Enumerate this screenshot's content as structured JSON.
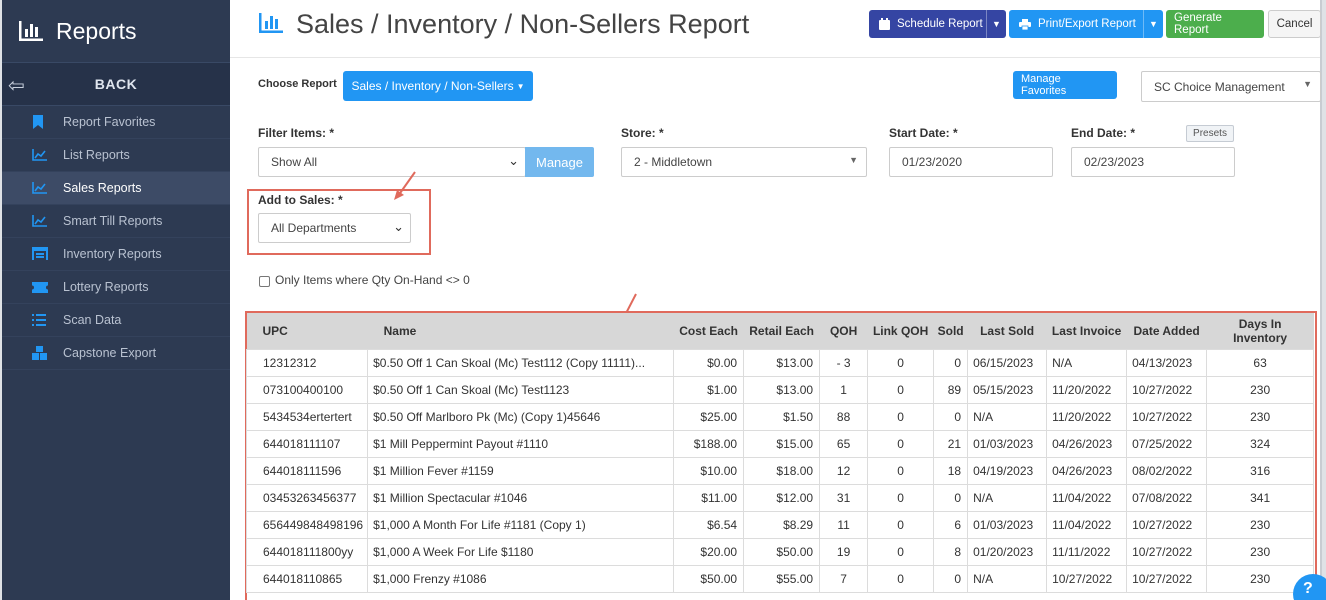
{
  "sidebar": {
    "title": "Reports",
    "back_label": "BACK",
    "items": [
      {
        "label": "Report Favorites",
        "icon": "bookmark-icon",
        "active": false
      },
      {
        "label": "List Reports",
        "icon": "chart-line-icon",
        "active": false
      },
      {
        "label": "Sales Reports",
        "icon": "chart-line-icon",
        "active": true
      },
      {
        "label": "Smart Till Reports",
        "icon": "chart-line-icon",
        "active": false
      },
      {
        "label": "Inventory Reports",
        "icon": "warehouse-icon",
        "active": false
      },
      {
        "label": "Lottery Reports",
        "icon": "ticket-icon",
        "active": false
      },
      {
        "label": "Scan Data",
        "icon": "list-icon",
        "active": false
      },
      {
        "label": "Capstone Export",
        "icon": "cubes-icon",
        "active": false
      }
    ]
  },
  "header": {
    "title": "Sales / Inventory / Non-Sellers Report",
    "schedule_label": "Schedule Report",
    "print_label": "Print/Export Report",
    "generate_label": "Generate Report",
    "cancel_label": "Cancel"
  },
  "choose": {
    "label": "Choose Report",
    "value": "Sales / Inventory / Non-Sellers",
    "favorites_label": "Manage Favorites",
    "org_value": "SC Choice Management"
  },
  "filters": {
    "filter_label": "Filter Items: *",
    "filter_value": "Show All",
    "manage_label": "Manage",
    "store_label": "Store: *",
    "store_value": "2 - Middletown",
    "start_label": "Start Date: *",
    "start_value": "01/23/2020",
    "end_label": "End Date: *",
    "end_value": "02/23/2023",
    "presets_label": "Presets",
    "add_label": "Add to Sales: *",
    "add_value": "All Departments",
    "qty_label": "Only Items where Qty On-Hand <> 0"
  },
  "colors": {
    "sidebar_bg": "#2d3a52",
    "primary": "#2196f3",
    "schedule": "#3545a3",
    "generate": "#4cae4c",
    "highlight": "#e06a5c"
  },
  "table": {
    "headers": [
      "UPC",
      "Name",
      "Cost Each",
      "Retail Each",
      "QOH",
      "Link QOH",
      "Sold",
      "Last Sold",
      "Last Invoice",
      "Date Added",
      "Days In Inventory"
    ],
    "rows": [
      [
        "12312312",
        "$0.50 Off 1 Can Skoal (Mc) Test112 (Copy 11111)...",
        "$0.00",
        "$13.00",
        "- 3",
        "0",
        "0",
        "06/15/2023",
        "N/A",
        "04/13/2023",
        "63"
      ],
      [
        "073100400100",
        "$0.50 Off 1 Can Skoal (Mc) Test1123",
        "$1.00",
        "$13.00",
        "1",
        "0",
        "89",
        "05/15/2023",
        "11/20/2022",
        "10/27/2022",
        "230"
      ],
      [
        "5434534ertertert",
        "$0.50 Off Marlboro Pk (Mc) (Copy 1)45646",
        "$25.00",
        "$1.50",
        "88",
        "0",
        "0",
        "N/A",
        "11/20/2022",
        "10/27/2022",
        "230"
      ],
      [
        "644018111107",
        "$1 Mill Peppermint Payout #1110",
        "$188.00",
        "$15.00",
        "65",
        "0",
        "21",
        "01/03/2023",
        "04/26/2023",
        "07/25/2022",
        "324"
      ],
      [
        "644018111596",
        "$1 Million Fever #1159",
        "$10.00",
        "$18.00",
        "12",
        "0",
        "18",
        "04/19/2023",
        "04/26/2023",
        "08/02/2022",
        "316"
      ],
      [
        "03453263456377",
        "$1 Million Spectacular #1046",
        "$11.00",
        "$12.00",
        "31",
        "0",
        "0",
        "N/A",
        "11/04/2022",
        "07/08/2022",
        "341"
      ],
      [
        "656449848498196",
        "$1,000 A Month For Life #1181 (Copy 1)",
        "$6.54",
        "$8.29",
        "11",
        "0",
        "6",
        "01/03/2023",
        "11/04/2022",
        "10/27/2022",
        "230"
      ],
      [
        "644018111800yy",
        "$1,000 A Week For Life $1180",
        "$20.00",
        "$50.00",
        "19",
        "0",
        "8",
        "01/20/2023",
        "11/11/2022",
        "10/27/2022",
        "230"
      ],
      [
        "644018110865",
        "$1,000 Frenzy #1086",
        "$50.00",
        "$55.00",
        "7",
        "0",
        "0",
        "N/A",
        "10/27/2022",
        "10/27/2022",
        "230"
      ]
    ]
  }
}
